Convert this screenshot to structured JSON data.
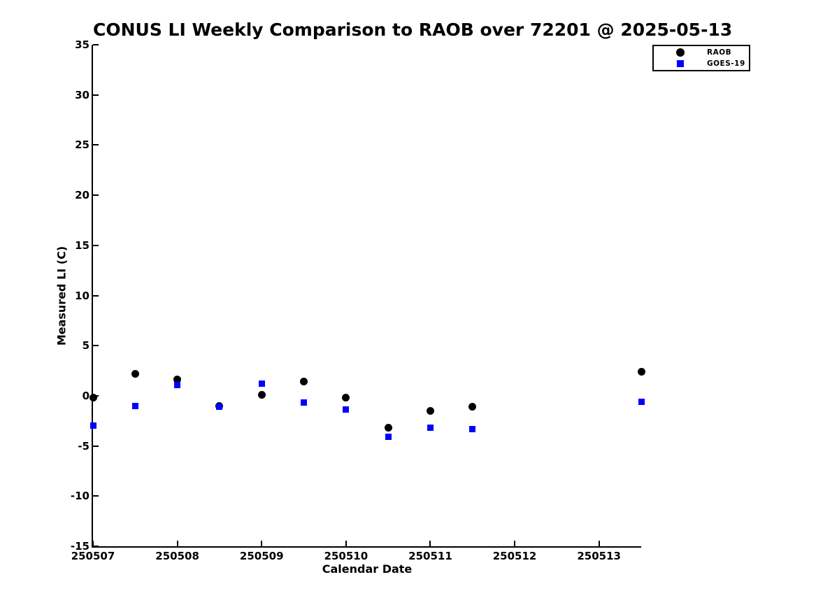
{
  "chart_data": {
    "type": "scatter",
    "title": "CONUS LI Weekly Comparison to RAOB over 72201 @ 2025-05-13",
    "xlabel": "Calendar Date",
    "ylabel": "Measured LI (C)",
    "xlim": [
      250507,
      250513.5
    ],
    "ylim": [
      -15,
      35
    ],
    "xticks": [
      "250507",
      "250508",
      "250509",
      "250510",
      "250511",
      "250512",
      "250513"
    ],
    "yticks": [
      "-15",
      "-10",
      "-5",
      "0",
      "5",
      "10",
      "15",
      "20",
      "25",
      "30",
      "35"
    ],
    "grid": false,
    "legend_position": "top-right",
    "x": [
      250507,
      250507.5,
      250508,
      250508.5,
      250509,
      250509.5,
      250510,
      250510.5,
      250511,
      250511.5,
      250513.5
    ],
    "series": [
      {
        "name": "RAOB",
        "marker": "circle",
        "color": "#000000",
        "values": [
          -0.2,
          2.2,
          1.6,
          -1.0,
          0.1,
          1.4,
          -0.2,
          -3.2,
          -1.5,
          -1.1,
          2.4
        ]
      },
      {
        "name": "GOES-19",
        "marker": "square",
        "color": "#0000ff",
        "values": [
          -3.0,
          -1.0,
          1.1,
          -1.1,
          1.2,
          -0.7,
          -1.4,
          -4.1,
          -3.2,
          -3.3,
          -0.6
        ]
      }
    ]
  }
}
